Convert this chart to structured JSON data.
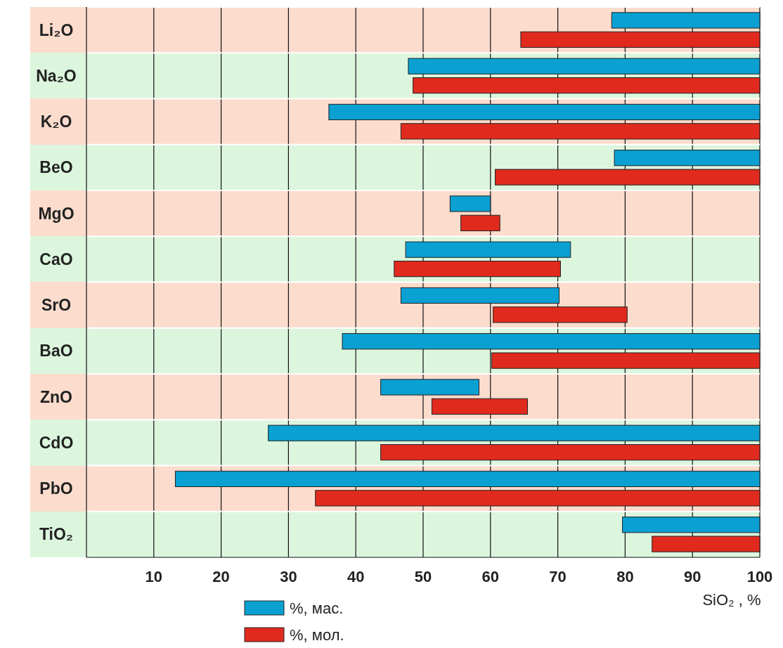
{
  "chart_data": {
    "type": "bar",
    "orientation": "horizontal",
    "xlabel": "SiO₂ , %",
    "categories": [
      "Li₂O",
      "Na₂O",
      "K₂O",
      "BeO",
      "MgO",
      "CaO",
      "SrO",
      "BaO",
      "ZnO",
      "CdO",
      "PbO",
      "TiO₂"
    ],
    "series": [
      {
        "name": "%, мас.",
        "color": "#0aa0d2",
        "base": [
          78,
          47.8,
          36,
          78.4,
          54,
          47.4,
          46.7,
          38,
          43.7,
          27,
          13.2,
          79.6
        ],
        "values": [
          22,
          52.2,
          64,
          21.6,
          6,
          24.5,
          23.5,
          62,
          14.6,
          73,
          86.8,
          20.4
        ]
      },
      {
        "name": "%, мол.",
        "color": "#e02a1e",
        "base": [
          64.5,
          48.5,
          46.7,
          60.7,
          55.6,
          45.7,
          60.4,
          60.2,
          51.3,
          43.7,
          34,
          84
        ],
        "values": [
          35.5,
          51.5,
          53.3,
          39.3,
          5.8,
          24.7,
          19.9,
          39.8,
          14.2,
          56.3,
          66,
          16
        ]
      }
    ],
    "xlim": [
      0,
      100
    ],
    "xticks": [
      10,
      20,
      30,
      40,
      50,
      60,
      70,
      80,
      90,
      100
    ],
    "grid": "x",
    "legend": "bottom"
  }
}
